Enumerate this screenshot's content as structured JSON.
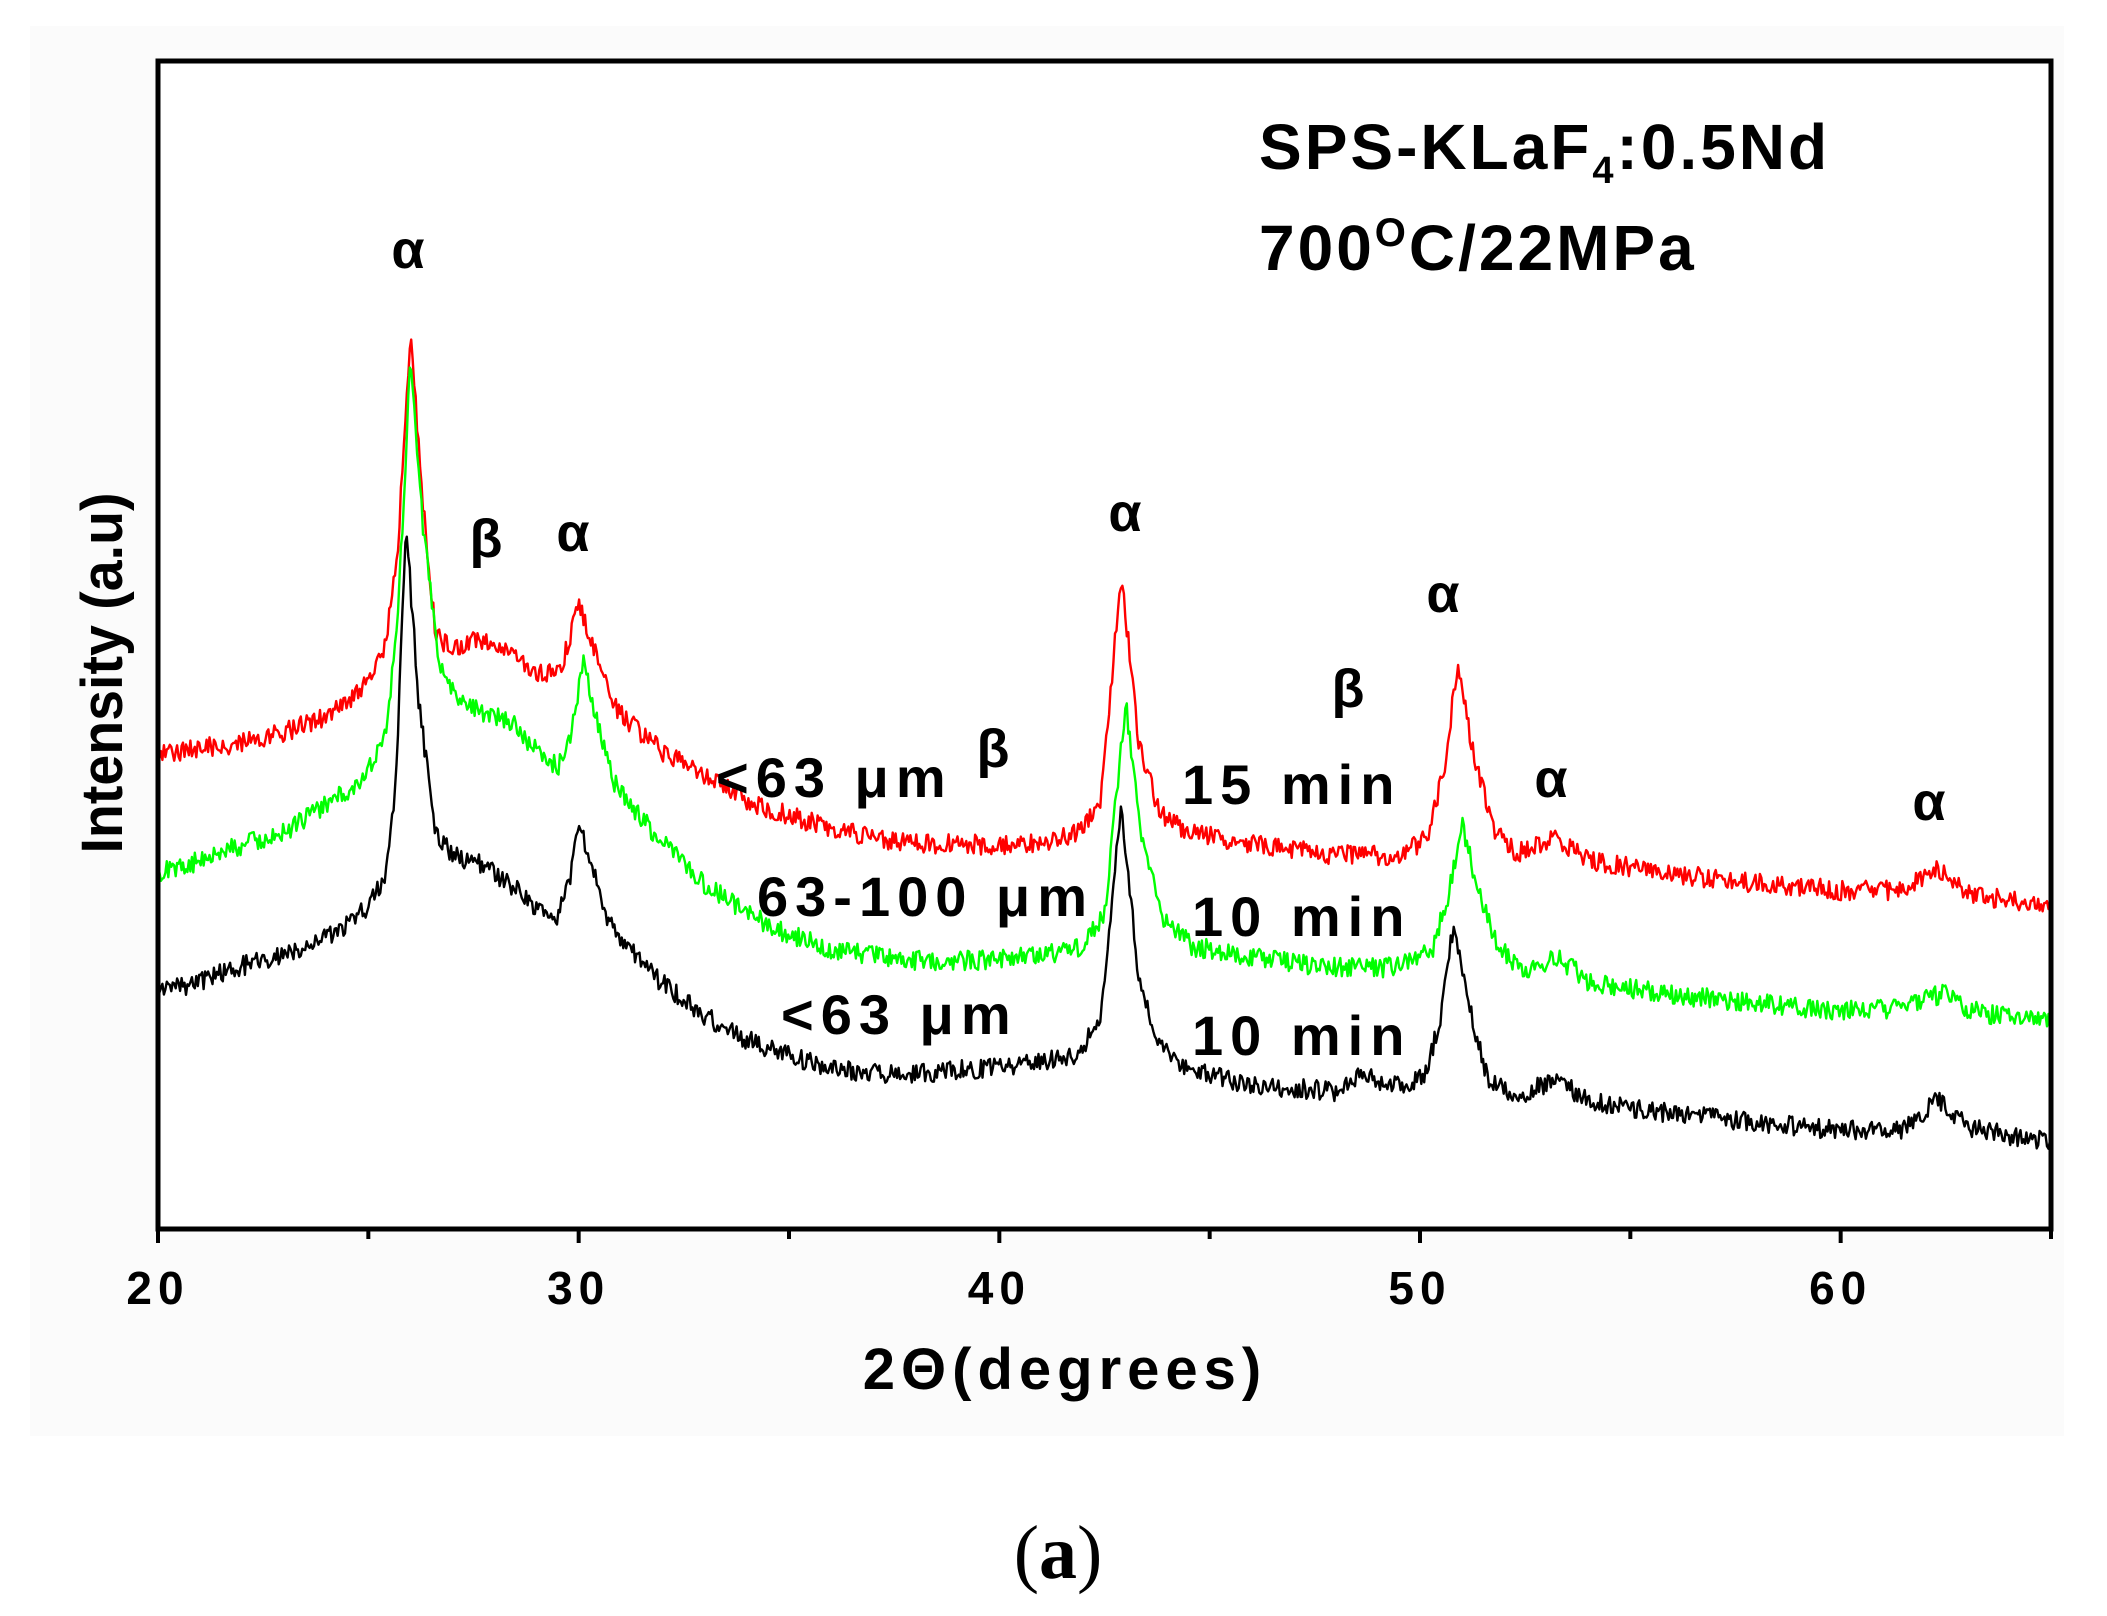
{
  "chart_data": {
    "type": "line",
    "title": {
      "main": "SPS-KLaF",
      "sub": "4",
      "rest": ":0.5Nd"
    },
    "subtitle": {
      "main": "700",
      "sup": "O",
      "rest": "C/22MPa"
    },
    "xlabel": "2Θ(degrees)",
    "ylabel": "Intensity (a.u)",
    "xlim": [
      20,
      65
    ],
    "ylim": [
      0,
      100
    ],
    "xticks": [
      20,
      30,
      40,
      50,
      60
    ],
    "xtick_labels": [
      "20",
      "30",
      "40",
      "50",
      "60"
    ],
    "minor_xticks": [
      25,
      35,
      45,
      55,
      65
    ],
    "yticks": [],
    "grid": false,
    "series": [
      {
        "label": "<63 μm",
        "duration": "15 min",
        "color": "#ff0000",
        "x": [
          20,
          21,
          22,
          23,
          24,
          24.5,
          25,
          25.4,
          25.7,
          26,
          26.3,
          26.6,
          27,
          27.5,
          28,
          28.5,
          29,
          29.5,
          29.8,
          30,
          30.3,
          30.7,
          31,
          32,
          33,
          34,
          35,
          36,
          37,
          38,
          39,
          40,
          41,
          41.8,
          42.4,
          42.9,
          43.3,
          43.8,
          44.5,
          46,
          48,
          49.5,
          50.2,
          50.6,
          50.9,
          51.2,
          51.7,
          52.3,
          53.2,
          54,
          55,
          56,
          58,
          60,
          61.5,
          62.3,
          63,
          64,
          65
        ],
        "y": [
          40.5,
          41.2,
          41.6,
          42.5,
          43.9,
          45.0,
          46.8,
          50.0,
          58.0,
          76.9,
          62.0,
          51.0,
          49.5,
          50.5,
          50.0,
          49.0,
          47.5,
          47.5,
          50.5,
          53.8,
          50.5,
          46.0,
          44.0,
          40.8,
          38.8,
          36.6,
          35.4,
          34.3,
          33.5,
          33.0,
          33.0,
          32.8,
          33.0,
          33.8,
          36.5,
          56.1,
          42.0,
          35.5,
          34.0,
          33.0,
          32.0,
          32.0,
          33.5,
          40.0,
          48.6,
          42.0,
          34.5,
          32.2,
          33.6,
          31.5,
          31.0,
          30.4,
          29.6,
          29.0,
          29.0,
          31.0,
          28.6,
          28.2,
          27.8
        ]
      },
      {
        "label": "63-100 μm",
        "duration": "10 min",
        "color": "#00ff00",
        "x": [
          20,
          21,
          22,
          23,
          24,
          24.5,
          25,
          25.4,
          25.7,
          26,
          26.3,
          26.7,
          27,
          27.5,
          28,
          28.5,
          29,
          29.5,
          29.8,
          30.1,
          30.4,
          30.8,
          31.2,
          32,
          33,
          34,
          35,
          36,
          37,
          38,
          39,
          40,
          41,
          41.9,
          42.5,
          43,
          43.4,
          43.9,
          44.6,
          46,
          48,
          49.5,
          50.3,
          50.7,
          51,
          51.3,
          51.8,
          52.4,
          53.3,
          54,
          55,
          56,
          58,
          60,
          61.5,
          62.5,
          63,
          64,
          65
        ],
        "y": [
          30.6,
          31.5,
          32.9,
          34.0,
          36.4,
          37.5,
          39.3,
          42.0,
          52.0,
          74.6,
          60.0,
          48.0,
          46.0,
          44.5,
          44.0,
          43.0,
          41.0,
          39.5,
          42.0,
          48.6,
          44.0,
          38.5,
          36.5,
          33.0,
          29.5,
          27.0,
          25.2,
          24.0,
          23.4,
          23.0,
          23.0,
          23.1,
          23.4,
          24.2,
          27.0,
          45.1,
          33.0,
          26.5,
          24.2,
          23.2,
          22.4,
          22.4,
          24.0,
          29.0,
          34.9,
          30.0,
          24.5,
          22.0,
          23.2,
          21.2,
          20.6,
          20.1,
          19.3,
          18.7,
          18.9,
          20.3,
          18.8,
          18.1,
          17.6
        ]
      },
      {
        "label": "<63 μm",
        "duration": "10 min",
        "color": "#000000",
        "x": [
          20,
          21,
          22,
          23,
          24,
          24.5,
          25,
          25.4,
          25.65,
          25.9,
          26.2,
          26.6,
          27,
          27.5,
          28,
          28.5,
          29,
          29.5,
          29.8,
          30,
          30.3,
          30.7,
          31.2,
          32,
          33,
          34,
          35,
          36,
          37,
          38,
          39,
          40,
          41,
          41.8,
          42.4,
          42.9,
          43.3,
          43.8,
          44.5,
          46,
          48,
          48.6,
          49.3,
          50.1,
          50.5,
          50.8,
          51.1,
          51.6,
          52.2,
          53.2,
          54,
          55,
          56,
          58,
          60,
          61.5,
          62.3,
          63,
          64,
          65
        ],
        "y": [
          20.2,
          21.2,
          22.5,
          23.5,
          24.9,
          26.0,
          27.7,
          30.0,
          38.0,
          60.1,
          45.0,
          34.0,
          32.0,
          31.5,
          30.5,
          29.2,
          27.5,
          26.5,
          30.0,
          35.3,
          31.0,
          26.5,
          24.0,
          21.0,
          18.2,
          16.2,
          14.8,
          13.8,
          13.4,
          13.3,
          13.6,
          13.9,
          14.3,
          15.0,
          17.5,
          36.4,
          22.0,
          15.5,
          13.6,
          12.3,
          11.8,
          13.2,
          12.2,
          13.0,
          18.0,
          26.2,
          20.0,
          13.0,
          11.2,
          12.8,
          11.0,
          10.4,
          9.9,
          9.1,
          8.4,
          8.6,
          11.0,
          8.8,
          8.0,
          7.5
        ]
      }
    ],
    "peak_labels": [
      "α",
      "β",
      "α",
      "α",
      "β",
      "β",
      "α",
      "α",
      "α"
    ]
  },
  "caption": {
    "open": "(",
    "label": "a",
    "close": ")"
  }
}
